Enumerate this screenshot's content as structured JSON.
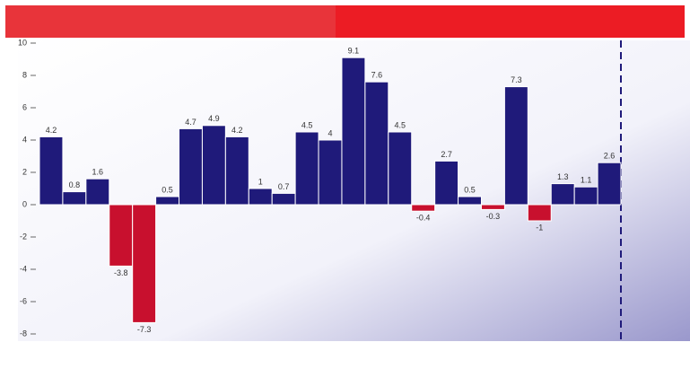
{
  "chart_data": {
    "type": "bar",
    "values": [
      4.2,
      0.8,
      1.6,
      -3.8,
      -7.3,
      0.5,
      4.7,
      4.9,
      4.2,
      1.0,
      0.7,
      4.5,
      4.0,
      9.1,
      7.6,
      4.5,
      -0.4,
      2.7,
      0.5,
      -0.3,
      7.3,
      -1.0,
      1.3,
      1.1,
      2.6
    ],
    "color": "#1f1a7a",
    "negative_color": "#c8102e",
    "ylim": [
      -8,
      10
    ],
    "yticks": [
      -8,
      -6,
      -4,
      -2,
      0,
      2,
      4,
      6,
      8,
      10
    ],
    "grid": false
  }
}
